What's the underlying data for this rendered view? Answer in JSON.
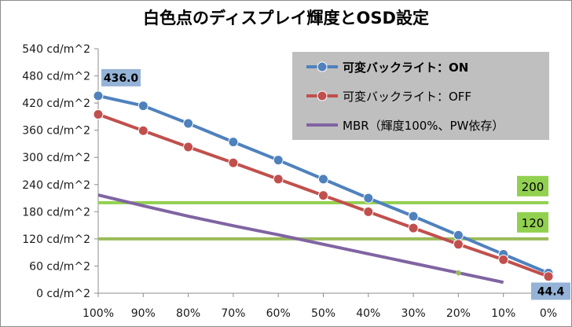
{
  "chart_data": {
    "type": "line",
    "title": "白色点のディスプレイ輝度とOSD設定",
    "y_unit": "cd/m^2",
    "ylim": [
      0,
      540
    ],
    "yticks": [
      0,
      60,
      120,
      180,
      240,
      300,
      360,
      420,
      480,
      540
    ],
    "ytick_labels": [
      "0 cd/m^2",
      "60 cd/m^2",
      "120 cd/m^2",
      "180 cd/m^2",
      "240 cd/m^2",
      "300 cd/m^2",
      "360 cd/m^2",
      "420 cd/m^2",
      "480 cd/m^2",
      "540 cd/m^2"
    ],
    "categories": [
      "100%",
      "90%",
      "80%",
      "70%",
      "60%",
      "50%",
      "40%",
      "30%",
      "20%",
      "10%",
      "0%"
    ],
    "grid": false,
    "legend_position": "top-right",
    "series": [
      {
        "name": "可変バックライト：ON",
        "color": "#4f81bd",
        "marker": "circle",
        "values": [
          436.0,
          414,
          375,
          334,
          294,
          252,
          210,
          170,
          128,
          86,
          44.4
        ]
      },
      {
        "name": "可変バックライト：OFF",
        "color": "#c0504d",
        "marker": "circle",
        "values": [
          395,
          359,
          323,
          288,
          252,
          216,
          180,
          144,
          108,
          74,
          37
        ]
      },
      {
        "name": "MBR（輝度100%、PW依存）",
        "color": "#8064a2",
        "marker": "none",
        "values": [
          217,
          193,
          170,
          149,
          129,
          108,
          87,
          66,
          45,
          24,
          null
        ]
      }
    ],
    "reference_lines": [
      {
        "label": "200",
        "value": 200,
        "color": "#92d050"
      },
      {
        "label": "120",
        "value": 120,
        "color": "#9bbb59"
      }
    ],
    "annotations": [
      {
        "text": "436.0",
        "series": 0,
        "index": 0
      },
      {
        "text": "44.4",
        "series": 0,
        "index": 10
      }
    ],
    "colors": {
      "legend_bg": "#bfbfbf",
      "annotation_bg": "#95b3d7",
      "ref_label_bg": "#92d050",
      "axis": "#8c8c8c",
      "mbr_extra_point": "#9bbb59"
    }
  }
}
